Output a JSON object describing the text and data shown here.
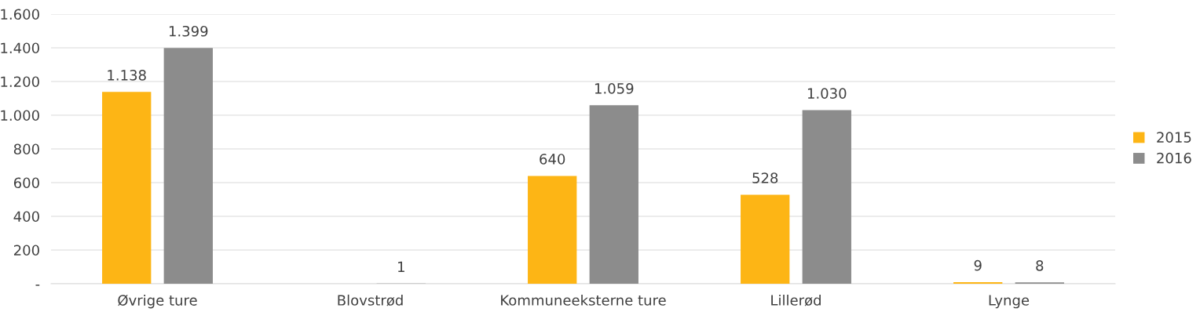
{
  "chart_data": {
    "type": "bar",
    "categories": [
      "Øvrige ture",
      "Blovstrød",
      "Kommuneeksterne ture",
      "Lillerød",
      "Lynge"
    ],
    "series": [
      {
        "name": "2015",
        "color": "#fdb515",
        "values": [
          1138,
          null,
          640,
          528,
          9
        ],
        "value_labels": [
          "1.138",
          null,
          "640",
          "528",
          "9"
        ]
      },
      {
        "name": "2016",
        "color": "#8c8c8c",
        "values": [
          1399,
          1,
          1059,
          1030,
          8
        ],
        "value_labels": [
          "1.399",
          "1",
          "1.059",
          "1.030",
          "8"
        ]
      }
    ],
    "ylim": [
      0,
      1600
    ],
    "yticks": [
      {
        "value": 0,
        "label": "-"
      },
      200,
      400,
      600,
      800,
      {
        "value": 1000,
        "label": "1.000"
      },
      {
        "value": 1200,
        "label": "1.200"
      },
      {
        "value": 1400,
        "label": "1.400"
      },
      {
        "value": 1600,
        "label": "1.600"
      }
    ],
    "grid": "y",
    "legend": "right"
  }
}
